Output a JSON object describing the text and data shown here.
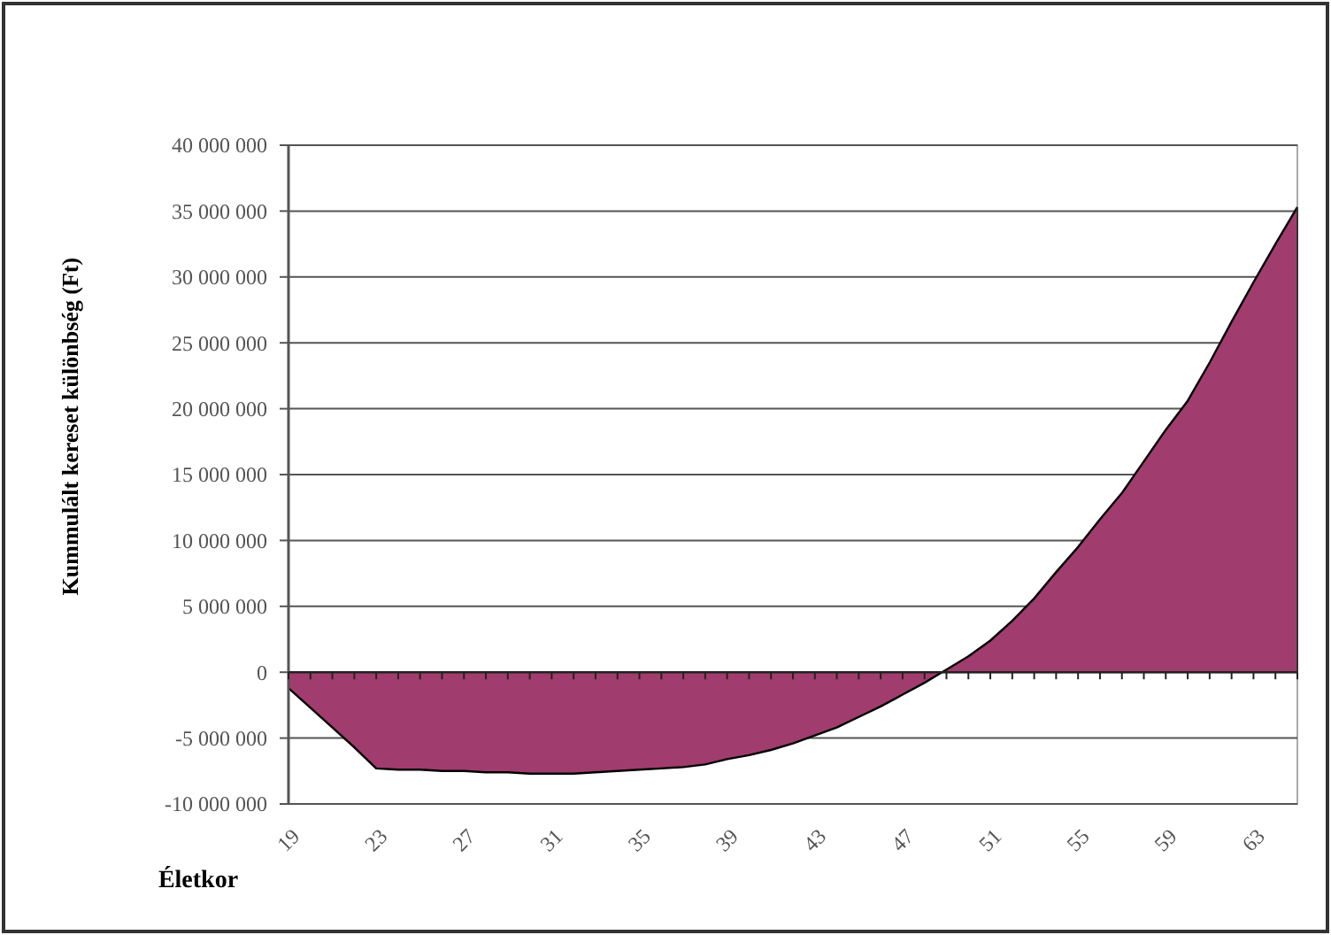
{
  "chart_data": {
    "type": "area",
    "xlabel": "Életkor",
    "ylabel": "Kummulált kereset különbség  (Ft)",
    "categories": [
      "19",
      null,
      null,
      null,
      "23",
      null,
      null,
      null,
      "27",
      null,
      null,
      null,
      "31",
      null,
      null,
      null,
      "35",
      null,
      null,
      null,
      "39",
      null,
      null,
      null,
      "43",
      null,
      null,
      null,
      "47",
      null,
      null,
      null,
      "51",
      null,
      null,
      null,
      "55",
      null,
      null,
      null,
      "59",
      null,
      null,
      null,
      "63",
      null,
      null
    ],
    "series": [
      {
        "color": "#a03c6e",
        "values": [
          -1200000,
          -2700000,
          -4200000,
          -5700000,
          -7300000,
          -7400000,
          -7400000,
          -7500000,
          -7500000,
          -7600000,
          -7600000,
          -7700000,
          -7700000,
          -7700000,
          -7600000,
          -7500000,
          -7400000,
          -7300000,
          -7200000,
          -7000000,
          -6600000,
          -6300000,
          -5900000,
          -5400000,
          -4800000,
          -4200000,
          -3400000,
          -2600000,
          -1700000,
          -800000,
          200000,
          1200000,
          2400000,
          3900000,
          5600000,
          7600000,
          9500000,
          11600000,
          13600000,
          16000000,
          18400000,
          20600000,
          23500000,
          26600000,
          29600000,
          32500000,
          35300000
        ]
      }
    ],
    "ylim": [
      -10000000,
      40000000
    ],
    "yticks": [
      {
        "value": -10000000,
        "label": "-10 000 000"
      },
      {
        "value": -5000000,
        "label": "-5 000 000"
      },
      {
        "value": 0,
        "label": "0"
      },
      {
        "value": 5000000,
        "label": "5 000 000"
      },
      {
        "value": 10000000,
        "label": "10 000 000"
      },
      {
        "value": 15000000,
        "label": "15 000 000"
      },
      {
        "value": 20000000,
        "label": "20 000 000"
      },
      {
        "value": 25000000,
        "label": "25 000 000"
      },
      {
        "value": 30000000,
        "label": "30 000 000"
      },
      {
        "value": 35000000,
        "label": "35 000 000"
      },
      {
        "value": 40000000,
        "label": "40 000 000"
      }
    ],
    "grid": "y"
  }
}
